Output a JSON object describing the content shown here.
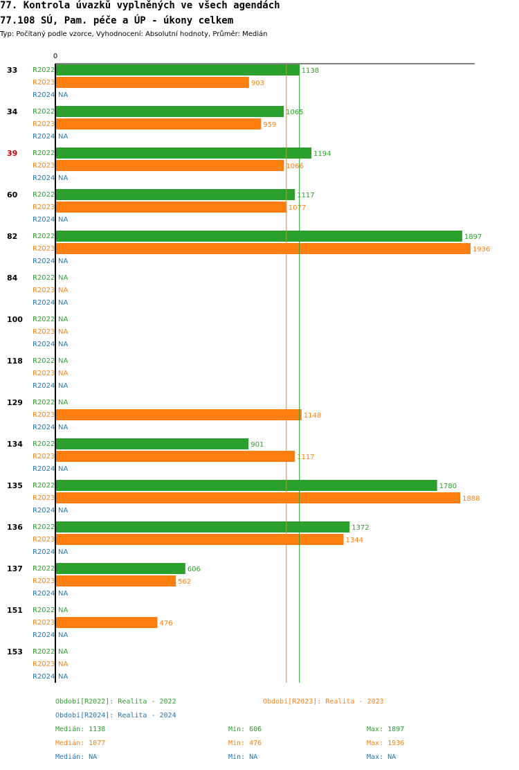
{
  "title_line1": "77. Kontrola úvazků vyplněných ve všech agendách",
  "title_line2": "77.108 SÚ, Pam. péče a ÚP - úkony celkem",
  "subtitle": "Typ: Počítaný podle vzorce, Vyhodnocení: Absolutní hodnoty, Průměr: Medián",
  "colors": {
    "R2022": "#2ca02c",
    "R2023": "#ff7f0e",
    "R2024": "#1f77b4",
    "highlight": "#cc0000"
  },
  "chart_data": {
    "type": "bar",
    "orientation": "horizontal",
    "axis_zero_label": "0",
    "xlim": [
      0,
      1936
    ],
    "na_label": "NA",
    "categories": [
      "33",
      "34",
      "39",
      "60",
      "82",
      "84",
      "100",
      "118",
      "129",
      "134",
      "135",
      "136",
      "137",
      "151",
      "153"
    ],
    "highlighted_category": "39",
    "series": [
      {
        "name": "R2022",
        "values": [
          1138,
          1065,
          1194,
          1117,
          1897,
          null,
          null,
          null,
          null,
          901,
          1780,
          1372,
          606,
          null,
          null
        ]
      },
      {
        "name": "R2023",
        "values": [
          903,
          959,
          1066,
          1077,
          1936,
          null,
          null,
          null,
          1148,
          1117,
          1888,
          1344,
          562,
          476,
          null
        ]
      },
      {
        "name": "R2024",
        "values": [
          null,
          null,
          null,
          null,
          null,
          null,
          null,
          null,
          null,
          null,
          null,
          null,
          null,
          null,
          null
        ]
      }
    ],
    "median_lines": [
      {
        "series": "R2022",
        "value": 1138
      },
      {
        "series": "R2023",
        "value": 1077
      }
    ]
  },
  "legend": {
    "r2022_label": "Období[R2022]: Realita - 2022",
    "r2023_label": "Období[R2023]: Realita - 2023",
    "r2024_label": "Období[R2024]: Realita - 2024",
    "stats": [
      {
        "median": "Medián: 1138",
        "min": "Min: 606",
        "max": "Max: 1897"
      },
      {
        "median": "Medián: 1077",
        "min": "Min: 476",
        "max": "Max: 1936"
      },
      {
        "median": "Medián: NA",
        "min": "Min: NA",
        "max": "Max: NA"
      }
    ]
  }
}
